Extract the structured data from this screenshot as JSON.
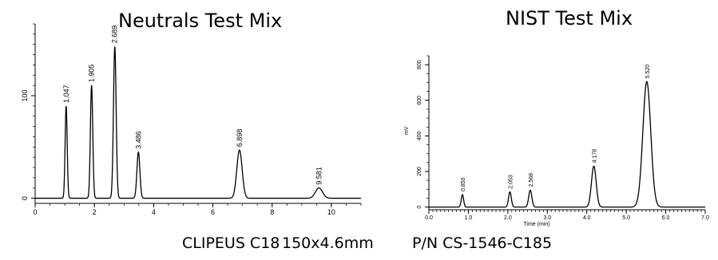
{
  "footer": {
    "column": "CLIPEUS C18",
    "dimensions": "150x4.6mm",
    "part_number": "P/N CS-1546-C185"
  },
  "chart_data": [
    {
      "type": "line",
      "title": "Neutrals Test Mix",
      "xlabel": "",
      "ylabel": "",
      "xlim": [
        0,
        11
      ],
      "ylim": [
        -5,
        170
      ],
      "x_ticks": [
        0,
        2,
        4,
        6,
        8,
        10
      ],
      "y_ticks": [
        0,
        100
      ],
      "peaks": [
        {
          "label": "1.047",
          "x": 1.047,
          "height": 90,
          "width": 0.035
        },
        {
          "label": "1.905",
          "x": 1.905,
          "height": 110,
          "width": 0.04
        },
        {
          "label": "2.689",
          "x": 2.689,
          "height": 148,
          "width": 0.045
        },
        {
          "label": "3.486",
          "x": 3.486,
          "height": 45,
          "width": 0.05
        },
        {
          "label": "6.898",
          "x": 6.898,
          "height": 47,
          "width": 0.09
        },
        {
          "label": "9.581",
          "x": 9.581,
          "height": 10,
          "width": 0.12
        }
      ]
    },
    {
      "type": "line",
      "title": "NIST Test Mix",
      "xlabel": "Time (min)",
      "ylabel": "mV",
      "xlim": [
        0,
        7
      ],
      "ylim": [
        -15,
        850
      ],
      "x_ticks": [
        "0.0",
        "1.0",
        "2.0",
        "3.0",
        "4.0",
        "5.0",
        "6.0",
        "7.0"
      ],
      "y_ticks": [
        "0",
        "200",
        "400",
        "600",
        "800"
      ],
      "peaks": [
        {
          "label": "0.850",
          "x": 0.85,
          "height": 70,
          "width": 0.03
        },
        {
          "label": "2.053",
          "x": 2.053,
          "height": 85,
          "width": 0.035
        },
        {
          "label": "2.568",
          "x": 2.568,
          "height": 95,
          "width": 0.04
        },
        {
          "label": "4.178",
          "x": 4.178,
          "height": 230,
          "width": 0.06
        },
        {
          "label": "5.520",
          "x": 5.52,
          "height": 705,
          "width": 0.1
        }
      ]
    }
  ]
}
